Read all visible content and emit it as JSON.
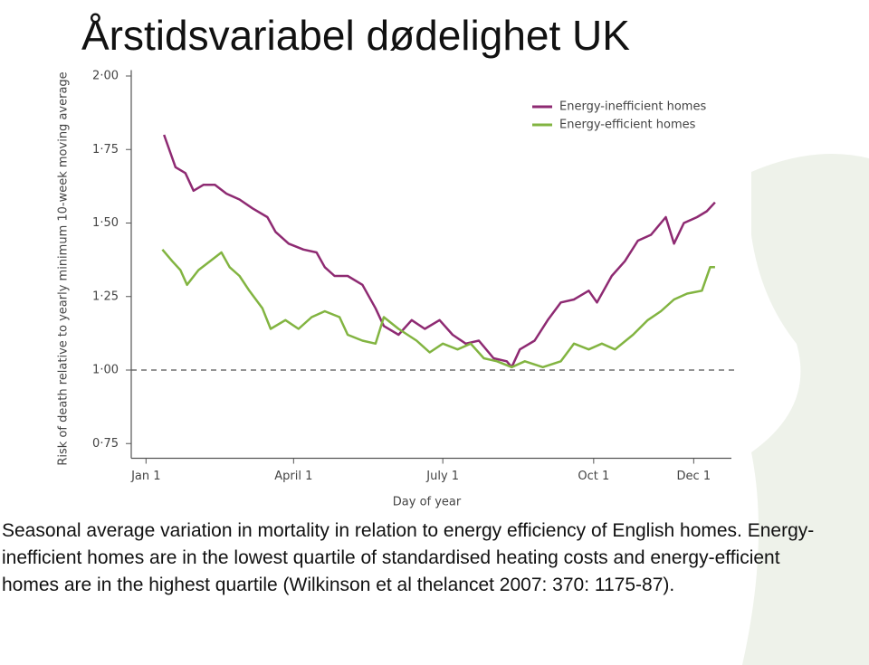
{
  "title": "Årstidsvariabel dødelighet UK",
  "caption": "Seasonal average variation in mortality in relation to energy efficiency of English homes. Energy-inefficient homes are in the lowest quartile of standardised heating costs and energy-efficient homes are in the highest quartile (Wilkinson et al thelancet 2007: 370: 1175-87).",
  "chart_data": {
    "type": "line",
    "x_label": "Day of year",
    "y_label": "Risk of death relative to yearly minimum 10-week moving average",
    "xlim": [
      -8,
      358
    ],
    "ylim": [
      0.7,
      2.02
    ],
    "xticks": [
      {
        "value": 1,
        "label": "Jan 1"
      },
      {
        "value": 91,
        "label": "April 1"
      },
      {
        "value": 182,
        "label": "July 1"
      },
      {
        "value": 274,
        "label": "Oct 1"
      },
      {
        "value": 335,
        "label": "Dec 1"
      }
    ],
    "yticks": [
      {
        "value": 0.75,
        "label": "0·75"
      },
      {
        "value": 1,
        "label": "1·00"
      },
      {
        "value": 1.25,
        "label": "1·25"
      },
      {
        "value": 1.5,
        "label": "1·50"
      },
      {
        "value": 1.75,
        "label": "1·75"
      },
      {
        "value": 2,
        "label": "2·00"
      }
    ],
    "reference_line": 1,
    "grid": false,
    "legend": "upper right",
    "series": [
      {
        "name": "Energy-inefficient homes",
        "color": "#8e2a72",
        "x": [
          12,
          19,
          25,
          30,
          36,
          43,
          50,
          58,
          66,
          75,
          80,
          88,
          97,
          105,
          110,
          116,
          124,
          133,
          141,
          146,
          155,
          163,
          171,
          180,
          188,
          196,
          204,
          213,
          221,
          224,
          229,
          238,
          246,
          254,
          262,
          271,
          276,
          285,
          293,
          301,
          309,
          318,
          323,
          329,
          337,
          343,
          348
        ],
        "values": [
          1.8,
          1.69,
          1.67,
          1.61,
          1.63,
          1.63,
          1.6,
          1.58,
          1.55,
          1.52,
          1.47,
          1.43,
          1.41,
          1.4,
          1.35,
          1.32,
          1.32,
          1.29,
          1.21,
          1.15,
          1.12,
          1.17,
          1.14,
          1.17,
          1.12,
          1.09,
          1.1,
          1.04,
          1.03,
          1.01,
          1.07,
          1.1,
          1.17,
          1.23,
          1.24,
          1.27,
          1.23,
          1.32,
          1.37,
          1.44,
          1.46,
          1.52,
          1.43,
          1.5,
          1.52,
          1.54,
          1.57
        ]
      },
      {
        "name": "Energy-efficient homes",
        "color": "#82b441",
        "x": [
          11,
          17,
          22,
          26,
          33,
          40,
          47,
          52,
          58,
          64,
          72,
          77,
          86,
          94,
          102,
          110,
          119,
          124,
          133,
          141,
          146,
          155,
          166,
          174,
          182,
          191,
          199,
          207,
          215,
          224,
          232,
          243,
          254,
          262,
          271,
          279,
          287,
          298,
          307,
          315,
          323,
          331,
          340,
          345,
          348
        ],
        "values": [
          1.41,
          1.37,
          1.34,
          1.29,
          1.34,
          1.37,
          1.4,
          1.35,
          1.32,
          1.27,
          1.21,
          1.14,
          1.17,
          1.14,
          1.18,
          1.2,
          1.18,
          1.12,
          1.1,
          1.09,
          1.18,
          1.14,
          1.1,
          1.06,
          1.09,
          1.07,
          1.09,
          1.04,
          1.03,
          1.01,
          1.03,
          1.01,
          1.03,
          1.09,
          1.07,
          1.09,
          1.07,
          1.12,
          1.17,
          1.2,
          1.24,
          1.26,
          1.27,
          1.35,
          1.35
        ]
      }
    ]
  }
}
